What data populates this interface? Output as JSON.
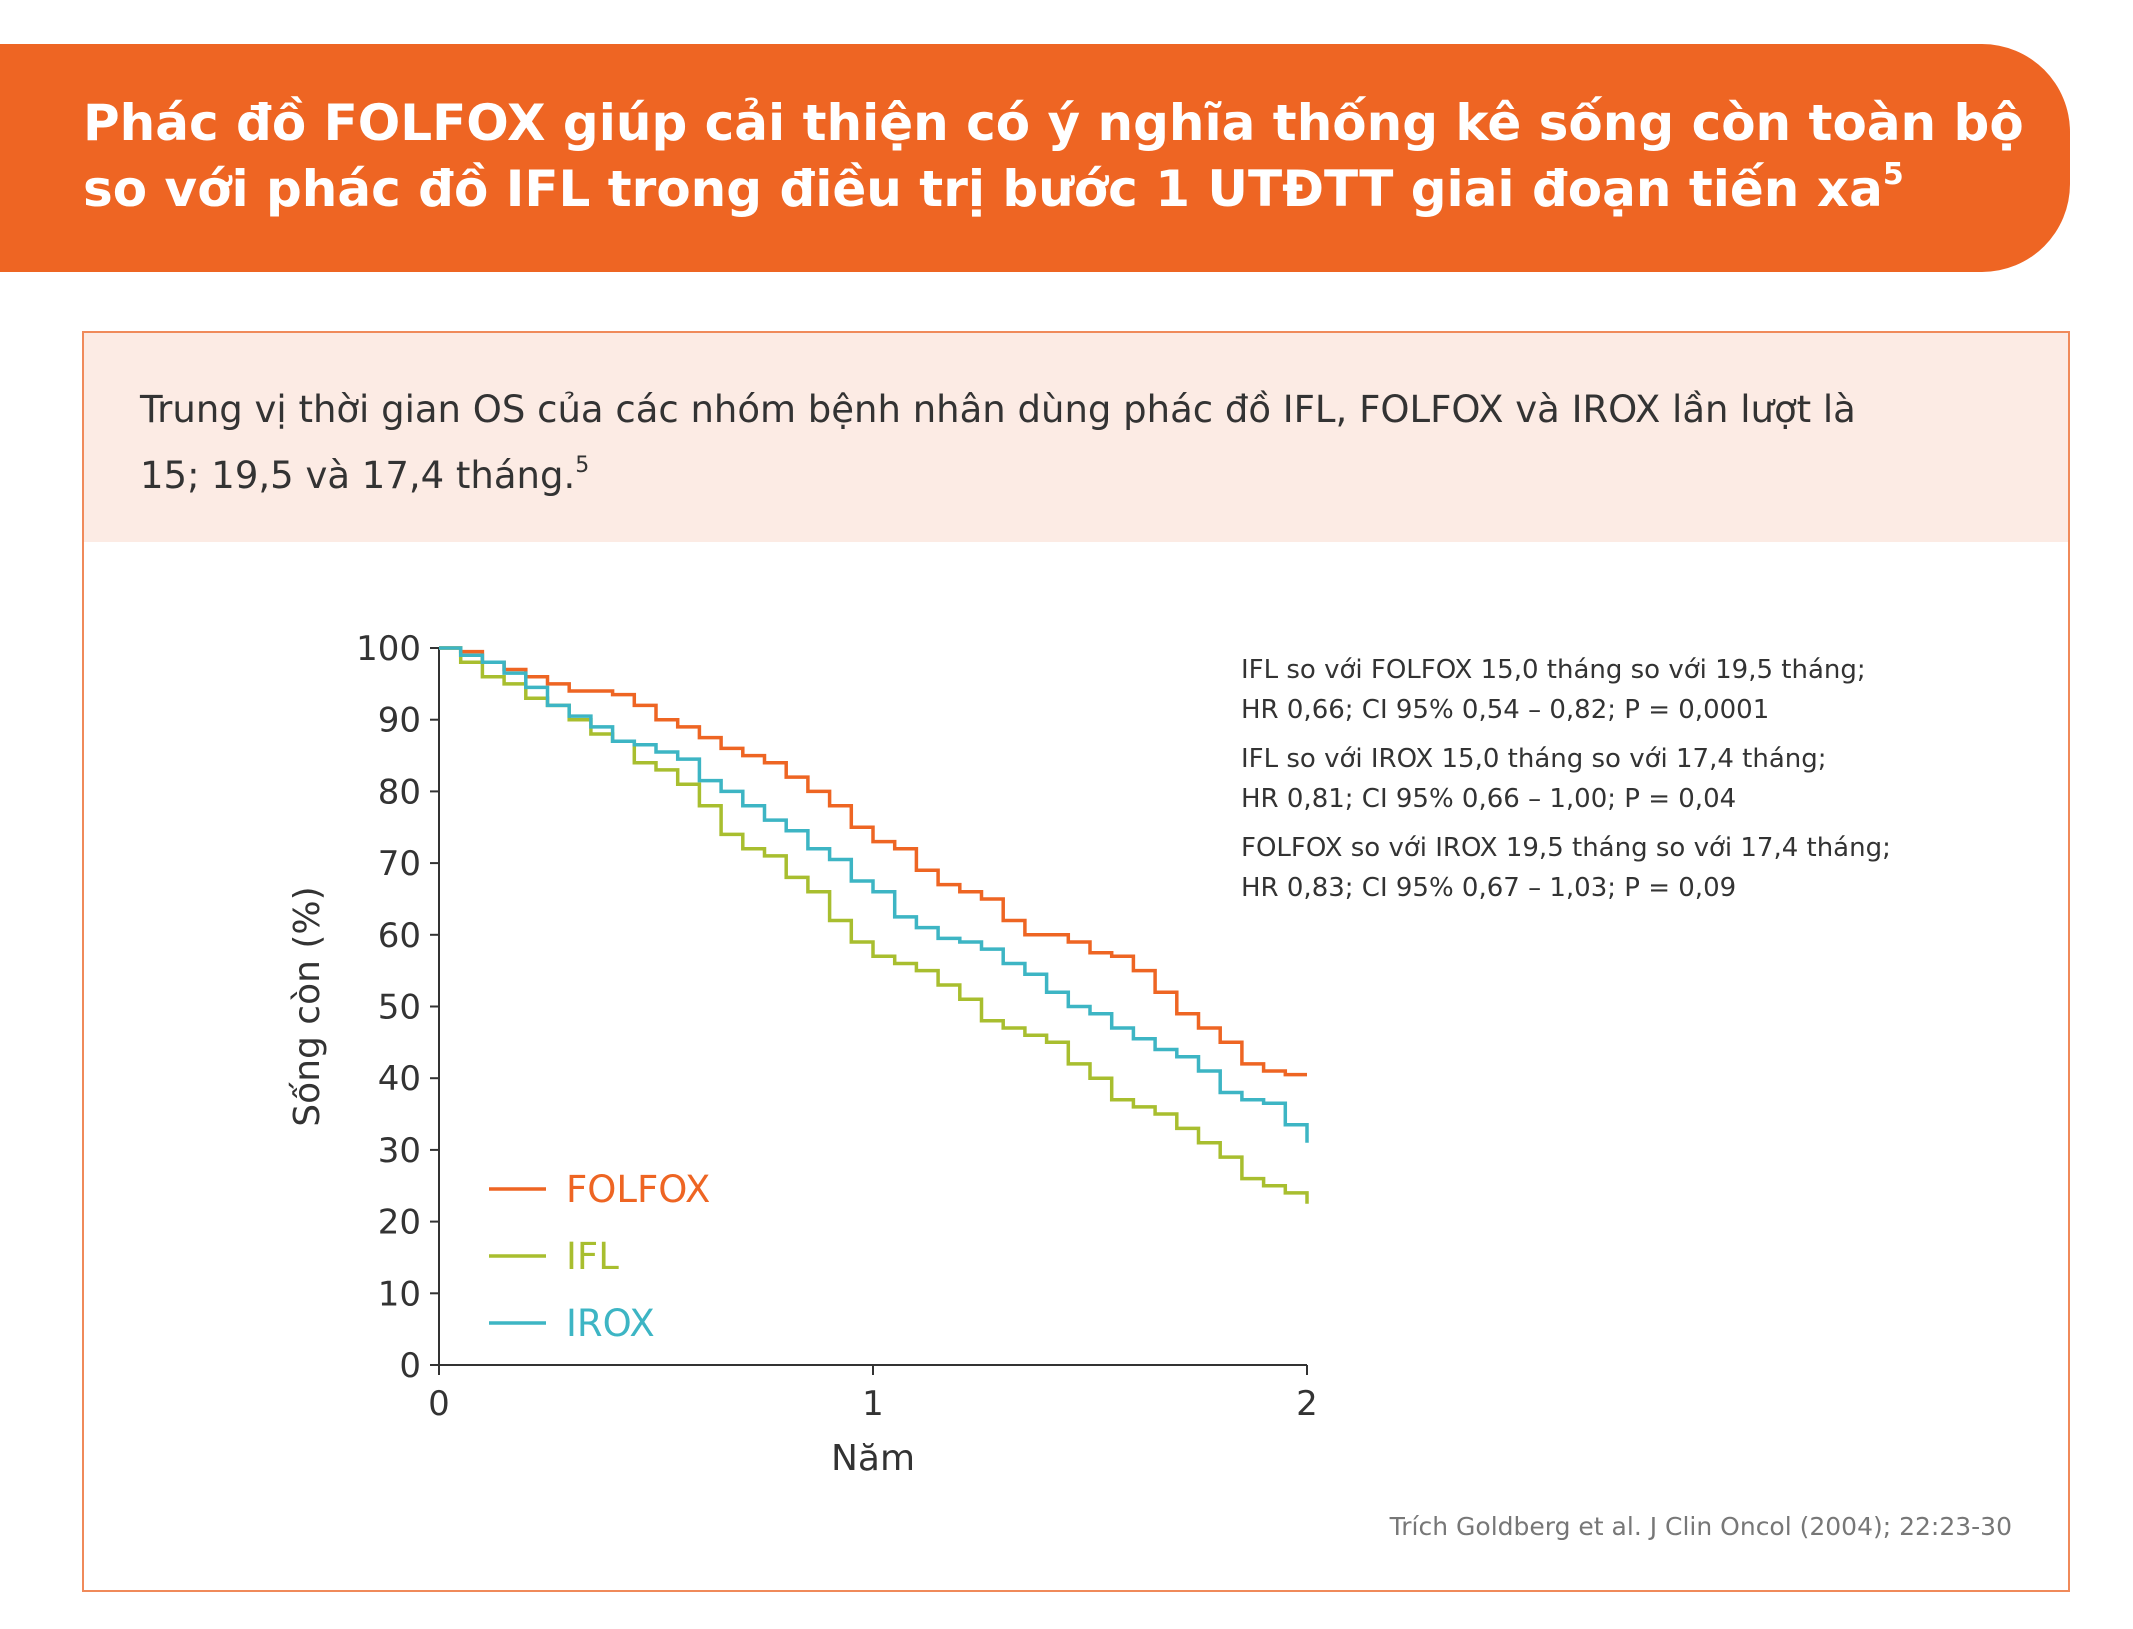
{
  "header": {
    "title_line1": "Phác đồ FOLFOX giúp cải thiện có ý nghĩa thống kê sống còn toàn bộ",
    "title_line2": "so với phác đồ IFL trong điều trị bước 1 UTĐTT giai đoạn tiến xa",
    "title_ref": "5"
  },
  "summary": {
    "line1": "Trung vị thời gian OS của các nhóm bệnh nhân dùng phác đồ IFL, FOLFOX và IROX lần lượt là",
    "line2": "15; 19,5 và 17,4 tháng.",
    "ref": "5"
  },
  "colors": {
    "banner": "#ee6523",
    "panel_border": "#f08a5a",
    "summary_bg": "#fcebe4",
    "folfox": "#ee6523",
    "ifl": "#a8be2f",
    "irox": "#3db5c4"
  },
  "chart_data": {
    "type": "line",
    "step": true,
    "xlabel": "Năm",
    "ylabel": "Sống còn (%)",
    "xlim": [
      0,
      2
    ],
    "ylim": [
      0,
      100
    ],
    "x_ticks": [
      0,
      1,
      2
    ],
    "y_ticks": [
      0,
      10,
      20,
      30,
      40,
      50,
      60,
      70,
      80,
      90,
      100
    ],
    "legend_position": "bottom-left",
    "annotations": [
      "IFL so với FOLFOX 15,0 tháng so với 19,5 tháng;",
      "HR 0,66; CI 95% 0,54 – 0,82; P = 0,0001",
      "IFL so với IROX 15,0 tháng so với 17,4 tháng;",
      "HR 0,81; CI 95% 0,66 – 1,00; P = 0,04",
      "FOLFOX so với IROX 19,5 tháng so với 17,4 tháng;",
      "HR 0,83; CI 95% 0,67 – 1,03; P = 0,09"
    ],
    "series": [
      {
        "name": "FOLFOX",
        "color": "#ee6523",
        "x": [
          0,
          0.05,
          0.1,
          0.15,
          0.2,
          0.25,
          0.3,
          0.35,
          0.4,
          0.45,
          0.5,
          0.55,
          0.6,
          0.65,
          0.7,
          0.75,
          0.8,
          0.85,
          0.9,
          0.95,
          1.0,
          1.05,
          1.1,
          1.15,
          1.2,
          1.25,
          1.3,
          1.35,
          1.4,
          1.45,
          1.5,
          1.55,
          1.6,
          1.65,
          1.7,
          1.75,
          1.8,
          1.85,
          1.9,
          1.95,
          2.0
        ],
        "y": [
          100,
          99.5,
          98,
          97,
          96,
          95,
          94,
          94,
          93.5,
          92,
          90,
          89,
          87.5,
          86,
          85,
          84,
          82,
          80,
          78,
          75,
          73,
          72,
          69,
          67,
          66,
          65,
          62,
          60,
          60,
          59,
          57.5,
          57,
          55,
          52,
          49,
          47,
          45,
          42,
          41,
          40.5,
          40.5
        ]
      },
      {
        "name": "IFL",
        "color": "#a8be2f",
        "x": [
          0,
          0.05,
          0.1,
          0.15,
          0.2,
          0.25,
          0.3,
          0.35,
          0.4,
          0.45,
          0.5,
          0.55,
          0.6,
          0.65,
          0.7,
          0.75,
          0.8,
          0.85,
          0.9,
          0.95,
          1.0,
          1.05,
          1.1,
          1.15,
          1.2,
          1.25,
          1.3,
          1.35,
          1.4,
          1.45,
          1.5,
          1.55,
          1.6,
          1.65,
          1.7,
          1.75,
          1.8,
          1.85,
          1.9,
          1.95,
          2.0
        ],
        "y": [
          100,
          98,
          96,
          95,
          93,
          92,
          90,
          88,
          87,
          84,
          83,
          81,
          78,
          74,
          72,
          71,
          68,
          66,
          62,
          59,
          57,
          56,
          55,
          53,
          51,
          48,
          47,
          46,
          45,
          42,
          40,
          37,
          36,
          35,
          33,
          31,
          29,
          26,
          25,
          24,
          22.5
        ]
      },
      {
        "name": "IROX",
        "color": "#3db5c4",
        "x": [
          0,
          0.05,
          0.1,
          0.15,
          0.2,
          0.25,
          0.3,
          0.35,
          0.4,
          0.45,
          0.5,
          0.55,
          0.6,
          0.65,
          0.7,
          0.75,
          0.8,
          0.85,
          0.9,
          0.95,
          1.0,
          1.05,
          1.1,
          1.15,
          1.2,
          1.25,
          1.3,
          1.35,
          1.4,
          1.45,
          1.5,
          1.55,
          1.6,
          1.65,
          1.7,
          1.75,
          1.8,
          1.85,
          1.9,
          1.95,
          2.0
        ],
        "y": [
          100,
          99,
          98,
          96.5,
          94.5,
          92,
          90.5,
          89,
          87,
          86.5,
          85.5,
          84.5,
          81.5,
          80,
          78,
          76,
          74.5,
          72,
          70.5,
          67.5,
          66,
          62.5,
          61,
          59.5,
          59,
          58,
          56,
          54.5,
          52,
          50,
          49,
          47,
          45.5,
          44,
          43,
          41,
          38,
          37,
          36.5,
          33.5,
          31
        ]
      }
    ]
  },
  "source": {
    "text": "Trích Goldberg et al. J Clin Oncol (2004); 22:23-30"
  }
}
